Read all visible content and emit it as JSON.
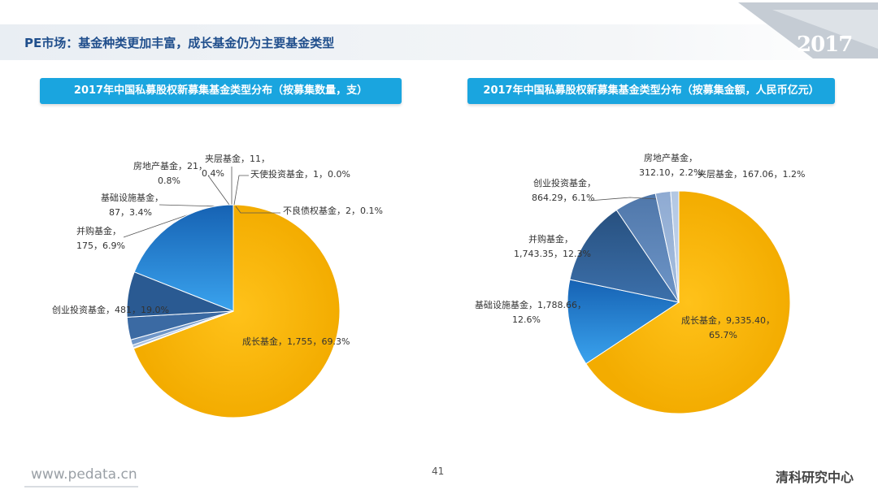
{
  "header": {
    "title": "PE市场：基金种类更加丰富，成长基金仍为主要基金类型",
    "year": "2017"
  },
  "chart_data": [
    {
      "type": "pie",
      "title": "2017年中国私募股权新募集基金类型分布（按募集数量，支）",
      "slices": [
        {
          "name": "成长基金",
          "value": 1755,
          "label_value": "1,755",
          "percent": "69.3%"
        },
        {
          "name": "不良债权基金",
          "value": 2,
          "label_value": "2",
          "percent": "0.1%"
        },
        {
          "name": "天使投资基金",
          "value": 1,
          "label_value": "1",
          "percent": "0.0%"
        },
        {
          "name": "夹层基金",
          "value": 11,
          "label_value": "11",
          "percent": "0.4%"
        },
        {
          "name": "房地产基金",
          "value": 21,
          "label_value": "21",
          "percent": "0.8%"
        },
        {
          "name": "基础设施基金",
          "value": 87,
          "label_value": "87",
          "percent": "3.4%"
        },
        {
          "name": "并购基金",
          "value": 175,
          "label_value": "175",
          "percent": "6.9%"
        },
        {
          "name": "创业投资基金",
          "value": 481,
          "label_value": "481",
          "percent": "19.0%"
        }
      ]
    },
    {
      "type": "pie",
      "title": "2017年中国私募股权新募集基金类型分布（按募集金额，人民币亿元）",
      "slices": [
        {
          "name": "成长基金",
          "value": 9335.4,
          "label_value": "9,335.40",
          "percent": "65.7%"
        },
        {
          "name": "基础设施基金",
          "value": 1788.66,
          "label_value": "1,788.66",
          "percent": "12.6%"
        },
        {
          "name": "并购基金",
          "value": 1743.35,
          "label_value": "1,743.35",
          "percent": "12.3%"
        },
        {
          "name": "创业投资基金",
          "value": 864.29,
          "label_value": "864.29",
          "percent": "6.1%"
        },
        {
          "name": "房地产基金",
          "value": 312.1,
          "label_value": "312.10",
          "percent": "2.2%"
        },
        {
          "name": "夹层基金",
          "value": 167.06,
          "label_value": "167.06",
          "percent": "1.2%"
        }
      ]
    }
  ],
  "footer": {
    "url": "www.pedata.cn",
    "page_number": "41",
    "org": "清科研究中心"
  }
}
